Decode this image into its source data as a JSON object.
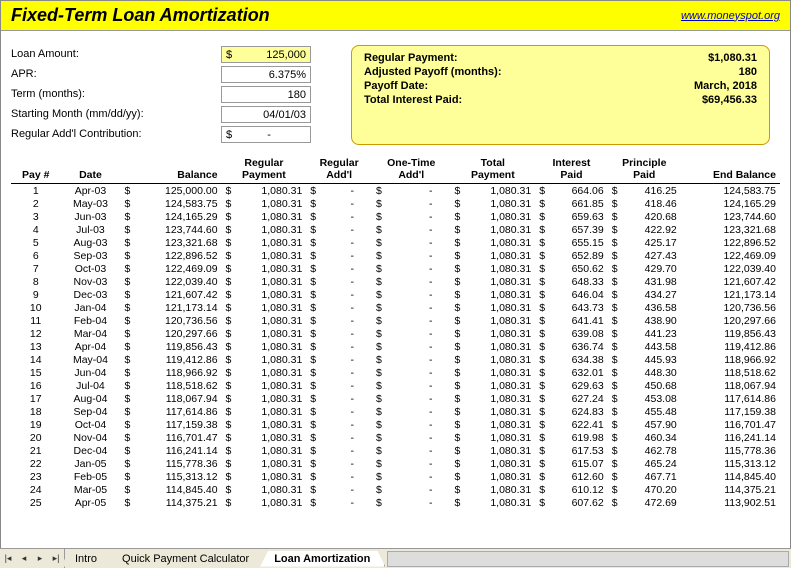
{
  "header": {
    "title": "Fixed-Term Loan Amortization",
    "link": "www.moneyspot.org"
  },
  "inputs": {
    "loan_amount_label": "Loan Amount:",
    "loan_amount_value": "125,000",
    "apr_label": "APR:",
    "apr_value": "6.375%",
    "term_label": "Term (months):",
    "term_value": "180",
    "start_label": "Starting Month (mm/dd/yy):",
    "start_value": "04/01/03",
    "addl_label": "Regular Add'l Contribution:",
    "addl_value": "-"
  },
  "summary": {
    "regular_payment_label": "Regular Payment:",
    "regular_payment_value": "$1,080.31",
    "adjusted_payoff_label": "Adjusted Payoff (months):",
    "adjusted_payoff_value": "180",
    "payoff_date_label": "Payoff Date:",
    "payoff_date_value": "March, 2018",
    "total_interest_label": "Total Interest Paid:",
    "total_interest_value": "$69,456.33"
  },
  "table": {
    "headers": {
      "pay": "Pay #",
      "date": "Date",
      "balance": "Balance",
      "regular_payment": "Regular Payment",
      "regular_addl": "Regular Add'l",
      "onetime_addl": "One-Time Add'l",
      "total_payment": "Total Payment",
      "interest_paid": "Interest Paid",
      "principle_paid": "Principle Paid",
      "end_balance": "End Balance"
    },
    "rows": [
      {
        "n": 1,
        "date": "Apr-03",
        "bal": "125,000.00",
        "rp": "1,080.31",
        "tp": "1,080.31",
        "ip": "664.06",
        "pp": "416.25",
        "eb": "124,583.75"
      },
      {
        "n": 2,
        "date": "May-03",
        "bal": "124,583.75",
        "rp": "1,080.31",
        "tp": "1,080.31",
        "ip": "661.85",
        "pp": "418.46",
        "eb": "124,165.29"
      },
      {
        "n": 3,
        "date": "Jun-03",
        "bal": "124,165.29",
        "rp": "1,080.31",
        "tp": "1,080.31",
        "ip": "659.63",
        "pp": "420.68",
        "eb": "123,744.60"
      },
      {
        "n": 4,
        "date": "Jul-03",
        "bal": "123,744.60",
        "rp": "1,080.31",
        "tp": "1,080.31",
        "ip": "657.39",
        "pp": "422.92",
        "eb": "123,321.68"
      },
      {
        "n": 5,
        "date": "Aug-03",
        "bal": "123,321.68",
        "rp": "1,080.31",
        "tp": "1,080.31",
        "ip": "655.15",
        "pp": "425.17",
        "eb": "122,896.52"
      },
      {
        "n": 6,
        "date": "Sep-03",
        "bal": "122,896.52",
        "rp": "1,080.31",
        "tp": "1,080.31",
        "ip": "652.89",
        "pp": "427.43",
        "eb": "122,469.09"
      },
      {
        "n": 7,
        "date": "Oct-03",
        "bal": "122,469.09",
        "rp": "1,080.31",
        "tp": "1,080.31",
        "ip": "650.62",
        "pp": "429.70",
        "eb": "122,039.40"
      },
      {
        "n": 8,
        "date": "Nov-03",
        "bal": "122,039.40",
        "rp": "1,080.31",
        "tp": "1,080.31",
        "ip": "648.33",
        "pp": "431.98",
        "eb": "121,607.42"
      },
      {
        "n": 9,
        "date": "Dec-03",
        "bal": "121,607.42",
        "rp": "1,080.31",
        "tp": "1,080.31",
        "ip": "646.04",
        "pp": "434.27",
        "eb": "121,173.14"
      },
      {
        "n": 10,
        "date": "Jan-04",
        "bal": "121,173.14",
        "rp": "1,080.31",
        "tp": "1,080.31",
        "ip": "643.73",
        "pp": "436.58",
        "eb": "120,736.56"
      },
      {
        "n": 11,
        "date": "Feb-04",
        "bal": "120,736.56",
        "rp": "1,080.31",
        "tp": "1,080.31",
        "ip": "641.41",
        "pp": "438.90",
        "eb": "120,297.66"
      },
      {
        "n": 12,
        "date": "Mar-04",
        "bal": "120,297.66",
        "rp": "1,080.31",
        "tp": "1,080.31",
        "ip": "639.08",
        "pp": "441.23",
        "eb": "119,856.43"
      },
      {
        "n": 13,
        "date": "Apr-04",
        "bal": "119,856.43",
        "rp": "1,080.31",
        "tp": "1,080.31",
        "ip": "636.74",
        "pp": "443.58",
        "eb": "119,412.86"
      },
      {
        "n": 14,
        "date": "May-04",
        "bal": "119,412.86",
        "rp": "1,080.31",
        "tp": "1,080.31",
        "ip": "634.38",
        "pp": "445.93",
        "eb": "118,966.92"
      },
      {
        "n": 15,
        "date": "Jun-04",
        "bal": "118,966.92",
        "rp": "1,080.31",
        "tp": "1,080.31",
        "ip": "632.01",
        "pp": "448.30",
        "eb": "118,518.62"
      },
      {
        "n": 16,
        "date": "Jul-04",
        "bal": "118,518.62",
        "rp": "1,080.31",
        "tp": "1,080.31",
        "ip": "629.63",
        "pp": "450.68",
        "eb": "118,067.94"
      },
      {
        "n": 17,
        "date": "Aug-04",
        "bal": "118,067.94",
        "rp": "1,080.31",
        "tp": "1,080.31",
        "ip": "627.24",
        "pp": "453.08",
        "eb": "117,614.86"
      },
      {
        "n": 18,
        "date": "Sep-04",
        "bal": "117,614.86",
        "rp": "1,080.31",
        "tp": "1,080.31",
        "ip": "624.83",
        "pp": "455.48",
        "eb": "117,159.38"
      },
      {
        "n": 19,
        "date": "Oct-04",
        "bal": "117,159.38",
        "rp": "1,080.31",
        "tp": "1,080.31",
        "ip": "622.41",
        "pp": "457.90",
        "eb": "116,701.47"
      },
      {
        "n": 20,
        "date": "Nov-04",
        "bal": "116,701.47",
        "rp": "1,080.31",
        "tp": "1,080.31",
        "ip": "619.98",
        "pp": "460.34",
        "eb": "116,241.14"
      },
      {
        "n": 21,
        "date": "Dec-04",
        "bal": "116,241.14",
        "rp": "1,080.31",
        "tp": "1,080.31",
        "ip": "617.53",
        "pp": "462.78",
        "eb": "115,778.36"
      },
      {
        "n": 22,
        "date": "Jan-05",
        "bal": "115,778.36",
        "rp": "1,080.31",
        "tp": "1,080.31",
        "ip": "615.07",
        "pp": "465.24",
        "eb": "115,313.12"
      },
      {
        "n": 23,
        "date": "Feb-05",
        "bal": "115,313.12",
        "rp": "1,080.31",
        "tp": "1,080.31",
        "ip": "612.60",
        "pp": "467.71",
        "eb": "114,845.40"
      },
      {
        "n": 24,
        "date": "Mar-05",
        "bal": "114,845.40",
        "rp": "1,080.31",
        "tp": "1,080.31",
        "ip": "610.12",
        "pp": "470.20",
        "eb": "114,375.21"
      },
      {
        "n": 25,
        "date": "Apr-05",
        "bal": "114,375.21",
        "rp": "1,080.31",
        "tp": "1,080.31",
        "ip": "607.62",
        "pp": "472.69",
        "eb": "113,902.51"
      }
    ]
  },
  "tabs": {
    "t1": "Intro",
    "t2": "Quick Payment Calculator",
    "t3": "Loan Amortization"
  }
}
